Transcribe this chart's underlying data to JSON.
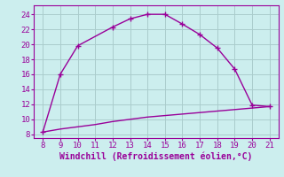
{
  "xlabel": "Windchill (Refroidissement éolien,°C)",
  "x_main": [
    8,
    9,
    10,
    12,
    13,
    14,
    15,
    16,
    17,
    18,
    19,
    20,
    21
  ],
  "y_main": [
    8.3,
    16.0,
    19.8,
    22.3,
    23.4,
    24.0,
    24.0,
    22.7,
    21.3,
    19.5,
    16.7,
    11.9,
    11.7
  ],
  "x_second": [
    8,
    9,
    10,
    11,
    12,
    13,
    14,
    15,
    16,
    17,
    18,
    19,
    20,
    21
  ],
  "y_second": [
    8.3,
    8.7,
    9.0,
    9.3,
    9.7,
    10.0,
    10.3,
    10.5,
    10.7,
    10.9,
    11.1,
    11.3,
    11.5,
    11.7
  ],
  "line_color": "#990099",
  "bg_color": "#cceeee",
  "grid_color": "#aacccc",
  "xlim": [
    7.5,
    21.5
  ],
  "ylim": [
    7.5,
    25.2
  ],
  "xticks": [
    8,
    9,
    10,
    11,
    12,
    13,
    14,
    15,
    16,
    17,
    18,
    19,
    20,
    21
  ],
  "yticks": [
    8,
    10,
    12,
    14,
    16,
    18,
    20,
    22,
    24
  ],
  "marker": "+",
  "markersize": 4,
  "linewidth": 1.0,
  "xlabel_fontsize": 7,
  "tick_fontsize": 6.5
}
